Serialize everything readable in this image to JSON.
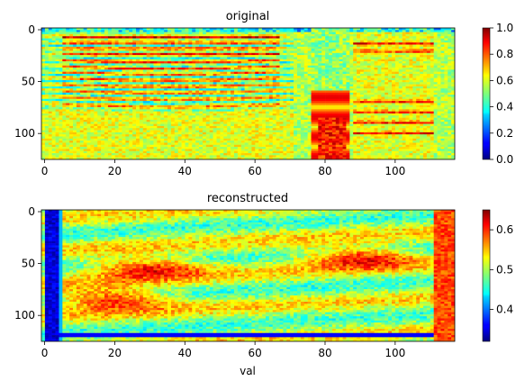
{
  "figure": {
    "xlabel": "val",
    "colormap": "jet"
  },
  "chart_data": [
    {
      "type": "heatmap",
      "title": "original",
      "x_range": [
        0,
        117
      ],
      "y_range": [
        0,
        125
      ],
      "y_inverted": true,
      "x_ticks": [
        "0",
        "20",
        "40",
        "60",
        "80",
        "100"
      ],
      "y_ticks": [
        "0",
        "50",
        "100"
      ],
      "colorbar": {
        "min": 0.0,
        "max": 1.0,
        "ticks": [
          "0.0",
          "0.2",
          "0.4",
          "0.6",
          "0.8",
          "1.0"
        ]
      },
      "description_values": {
        "background": 0.6,
        "bright_bands_rows": [
          9,
          14,
          20,
          25,
          30,
          36,
          41,
          47,
          53,
          59,
          65,
          72
        ],
        "bright_columns": [
          80,
          86
        ]
      }
    },
    {
      "type": "heatmap",
      "title": "reconstructed",
      "x_range": [
        0,
        117
      ],
      "y_range": [
        0,
        125
      ],
      "y_inverted": true,
      "x_ticks": [
        "0",
        "20",
        "40",
        "60",
        "80",
        "100"
      ],
      "y_ticks": [
        "0",
        "50",
        "100"
      ],
      "colorbar": {
        "min": 0.32,
        "max": 0.65,
        "ticks": [
          "0.4",
          "0.5",
          "0.6"
        ]
      },
      "description_values": {
        "background": 0.5,
        "hot_regions": [
          [
            20,
            85
          ],
          [
            30,
            55
          ],
          [
            90,
            45
          ]
        ],
        "left_edge_value": 0.33
      }
    }
  ]
}
